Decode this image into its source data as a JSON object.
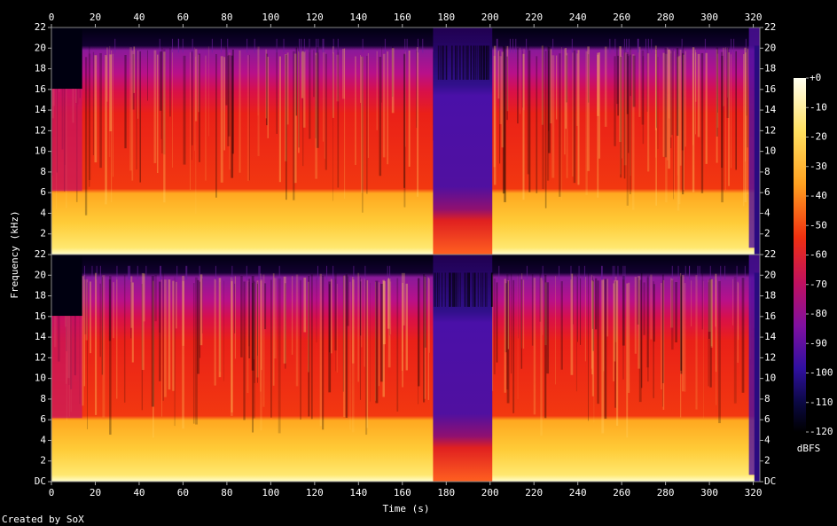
{
  "chart_data": [
    {
      "type": "spectrogram",
      "xlim": [
        0,
        323
      ],
      "xticks": [
        0,
        20,
        40,
        60,
        80,
        100,
        120,
        140,
        160,
        180,
        200,
        220,
        240,
        260,
        280,
        300,
        320
      ],
      "ylim": [
        0,
        22
      ],
      "yticks": [
        2,
        4,
        6,
        8,
        10,
        12,
        14,
        16,
        18,
        20,
        22
      ]
    },
    {
      "type": "spectrogram",
      "xlim": [
        0,
        323
      ],
      "xticks": [
        0,
        20,
        40,
        60,
        80,
        100,
        120,
        140,
        160,
        180,
        200,
        220,
        240,
        260,
        280,
        300,
        320
      ],
      "ylim": [
        0,
        22
      ],
      "yticks": [
        {
          "value": 0,
          "label": "DC"
        },
        2,
        4,
        6,
        8,
        10,
        12,
        14,
        16,
        18,
        20,
        22
      ]
    }
  ],
  "xlabel": "Time (s)",
  "ylabel": "Frequency (kHz)",
  "colorbar": {
    "label": "dBFS",
    "lim": [
      -120,
      0
    ],
    "ticks": [
      {
        "value": 0,
        "label": "+0"
      },
      -10,
      -20,
      -30,
      -40,
      -50,
      -60,
      -70,
      -80,
      -90,
      -100,
      -110,
      -120
    ]
  },
  "credit": "Created by SoX"
}
